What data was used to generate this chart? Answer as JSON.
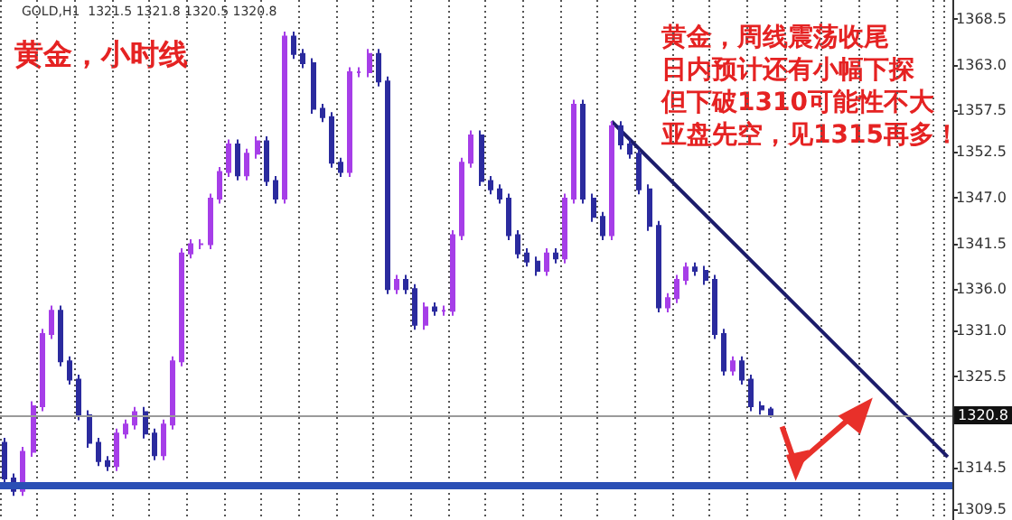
{
  "chart_data": {
    "type": "candlestick",
    "title": "黄金，小时线",
    "subtitle": "GOLD,H1  1321.5 1321.8 1320.5 1320.8",
    "annotations": [
      "黄金，周线震荡收尾",
      "日内预计还有小幅下探",
      "但下破1310可能性不大",
      "亚盘先空，见1315再多！"
    ],
    "categories": [
      null,
      null,
      null,
      null,
      null,
      null,
      null,
      null,
      null,
      null,
      null,
      null,
      null,
      null,
      null,
      null,
      null,
      null,
      null,
      null,
      null,
      null,
      null,
      null,
      null,
      null,
      null,
      null,
      null,
      null,
      null,
      null,
      null,
      null,
      null,
      null,
      null,
      null,
      null,
      null,
      null,
      null,
      null,
      null,
      null,
      null,
      null,
      null,
      null,
      null,
      null,
      null,
      null,
      null,
      null,
      null,
      null,
      null,
      null,
      null,
      null,
      null,
      null,
      null,
      null,
      null,
      null,
      null,
      null,
      null,
      null,
      null,
      null,
      null,
      null,
      null,
      null,
      null,
      null,
      null,
      null,
      null,
      null,
      null,
      null,
      null,
      null,
      null,
      null,
      null,
      null,
      null,
      null,
      null,
      null,
      null,
      null,
      null,
      null,
      null,
      null,
      null
    ],
    "colors": [
      "#2b2b9e",
      "#2b2b9e",
      "#a63ee8",
      "#a63ee8",
      "#a63ee8",
      "#a63ee8",
      "#2b2b9e",
      "#2b2b9e",
      "#2b2b9e",
      "#2b2b9e",
      "#2b2b9e",
      "#2b2b9e",
      "#a63ee8",
      "#a63ee8",
      "#a63ee8",
      "#2b2b9e",
      "#2b2b9e",
      "#a63ee8",
      "#a63ee8",
      "#a63ee8",
      "#a63ee8",
      "#a63ee8",
      "#a63ee8",
      "#a63ee8",
      "#a63ee8",
      "#2b2b9e",
      "#a63ee8",
      "#a63ee8",
      "#2b2b9e",
      "#2b2b9e",
      "#a63ee8",
      "#2b2b9e",
      "#2b2b9e",
      "#2b2b9e",
      "#2b2b9e",
      "#2b2b9e",
      "#2b2b9e",
      "#a63ee8",
      "#a63ee8",
      "#a63ee8",
      "#2b2b9e",
      "#2b2b9e",
      "#a63ee8",
      "#2b2b9e",
      "#2b2b9e",
      "#a63ee8",
      "#2b2b9e",
      "#a63ee8",
      "#a63ee8",
      "#a63ee8",
      "#a63ee8",
      "#2b2b9e",
      "#2b2b9e",
      "#2b2b9e",
      "#2b2b9e",
      "#2b2b9e",
      "#2b2b9e",
      "#2b2b9e",
      "#a63ee8",
      "#2b2b9e",
      "#a63ee8",
      "#a63ee8",
      "#2b2b9e",
      "#2b2b9e",
      "#2b2b9e",
      "#a63ee8",
      "#2b2b9e",
      "#2b2b9e",
      "#2b2b9e",
      "#2b2b9e",
      "#2b2b9e",
      "#a63ee8",
      "#a63ee8",
      "#a63ee8",
      "#2b2b9e",
      "#2b2b9e",
      "#2b2b9e",
      "#2b2b9e",
      "#a63ee8",
      "#2b2b9e",
      "#2b2b9e",
      "#2b2b9e",
      "#2b2b9e",
      null,
      null,
      null,
      null,
      null,
      null,
      null,
      null,
      null,
      null,
      null,
      null,
      null,
      null,
      null,
      null,
      null,
      null,
      null
    ],
    "ohlc": [
      [
        1317.5,
        1318.1,
        1312.6,
        1313.2
      ],
      [
        1313.2,
        1313.8,
        1311.1,
        1311.7
      ],
      [
        1311.7,
        1317.0,
        1311.1,
        1316.4
      ],
      [
        1316.4,
        1322.5,
        1315.8,
        1321.9
      ],
      [
        1321.9,
        1331.2,
        1321.3,
        1330.6
      ],
      [
        1330.6,
        1334.0,
        1330.0,
        1333.4
      ],
      [
        1333.4,
        1334.0,
        1326.7,
        1327.3
      ],
      [
        1327.3,
        1327.9,
        1324.5,
        1325.1
      ],
      [
        1325.1,
        1325.7,
        1320.2,
        1320.8
      ],
      [
        1320.8,
        1321.4,
        1316.9,
        1317.5
      ],
      [
        1317.5,
        1318.1,
        1314.7,
        1315.3
      ],
      [
        1315.3,
        1315.9,
        1314.1,
        1314.7
      ],
      [
        1314.7,
        1319.2,
        1314.1,
        1318.6
      ],
      [
        1318.6,
        1320.3,
        1318.0,
        1319.7
      ],
      [
        1319.7,
        1321.8,
        1319.1,
        1321.2
      ],
      [
        1321.2,
        1321.8,
        1318.0,
        1318.6
      ],
      [
        1318.6,
        1319.2,
        1315.4,
        1316.0
      ],
      [
        1316.0,
        1320.3,
        1315.4,
        1319.7
      ],
      [
        1319.7,
        1327.9,
        1319.1,
        1327.3
      ],
      [
        1327.3,
        1340.9,
        1326.7,
        1340.3
      ],
      [
        1340.3,
        1342.0,
        1339.7,
        1341.4
      ],
      [
        1341.4,
        1342.0,
        1340.8,
        1341.4
      ],
      [
        1341.4,
        1347.5,
        1340.8,
        1346.9
      ],
      [
        1346.9,
        1350.7,
        1346.3,
        1350.1
      ],
      [
        1350.1,
        1354.0,
        1349.5,
        1353.4
      ],
      [
        1353.4,
        1354.0,
        1349.1,
        1349.7
      ],
      [
        1349.7,
        1352.9,
        1349.1,
        1352.3
      ],
      [
        1352.3,
        1354.4,
        1351.7,
        1353.8
      ],
      [
        1353.8,
        1354.4,
        1348.4,
        1349.0
      ],
      [
        1349.0,
        1349.6,
        1346.3,
        1346.9
      ],
      [
        1346.9,
        1367.0,
        1346.3,
        1366.4
      ],
      [
        1366.4,
        1367.0,
        1363.7,
        1364.3
      ],
      [
        1364.3,
        1364.9,
        1362.6,
        1363.2
      ],
      [
        1363.2,
        1363.8,
        1357.1,
        1357.7
      ],
      [
        1357.7,
        1358.3,
        1356.1,
        1356.7
      ],
      [
        1356.7,
        1357.3,
        1350.6,
        1351.2
      ],
      [
        1351.2,
        1351.8,
        1349.5,
        1350.1
      ],
      [
        1350.1,
        1362.7,
        1349.5,
        1362.1
      ],
      [
        1362.1,
        1362.7,
        1361.5,
        1362.1
      ],
      [
        1362.1,
        1364.9,
        1361.5,
        1364.3
      ],
      [
        1364.3,
        1364.9,
        1360.4,
        1361.0
      ],
      [
        1361.0,
        1361.6,
        1335.4,
        1336.0
      ],
      [
        1336.0,
        1337.7,
        1335.4,
        1337.1
      ],
      [
        1337.1,
        1337.7,
        1335.4,
        1336.0
      ],
      [
        1336.0,
        1336.6,
        1331.1,
        1331.7
      ],
      [
        1331.7,
        1334.4,
        1331.1,
        1333.8
      ],
      [
        1333.8,
        1334.4,
        1332.8,
        1333.4
      ],
      [
        1333.4,
        1334.0,
        1332.8,
        1333.4
      ],
      [
        1333.4,
        1343.1,
        1332.8,
        1342.5
      ],
      [
        1342.5,
        1351.8,
        1341.9,
        1351.2
      ],
      [
        1351.2,
        1355.1,
        1350.6,
        1354.5
      ],
      [
        1354.5,
        1355.1,
        1348.4,
        1349.0
      ],
      [
        1349.0,
        1349.6,
        1347.4,
        1348.0
      ],
      [
        1348.0,
        1348.6,
        1346.3,
        1346.9
      ],
      [
        1346.9,
        1347.5,
        1341.9,
        1342.5
      ],
      [
        1342.5,
        1343.1,
        1339.7,
        1340.3
      ],
      [
        1340.3,
        1340.9,
        1338.7,
        1339.3
      ],
      [
        1339.3,
        1339.9,
        1337.6,
        1338.2
      ],
      [
        1338.2,
        1340.9,
        1337.6,
        1340.3
      ],
      [
        1340.3,
        1340.9,
        1339.1,
        1339.7
      ],
      [
        1339.7,
        1347.5,
        1339.1,
        1346.9
      ],
      [
        1346.9,
        1358.8,
        1346.3,
        1358.2
      ],
      [
        1358.2,
        1358.8,
        1346.3,
        1346.9
      ],
      [
        1346.9,
        1347.5,
        1344.1,
        1344.7
      ],
      [
        1344.7,
        1345.3,
        1341.9,
        1342.5
      ],
      [
        1342.5,
        1356.2,
        1341.9,
        1355.6
      ],
      [
        1355.6,
        1356.2,
        1352.8,
        1353.4
      ],
      [
        1353.4,
        1354.0,
        1351.7,
        1352.3
      ],
      [
        1352.3,
        1352.9,
        1347.4,
        1348.0
      ],
      [
        1348.0,
        1348.6,
        1343.0,
        1343.6
      ],
      [
        1343.6,
        1344.2,
        1333.2,
        1333.8
      ],
      [
        1333.8,
        1335.5,
        1333.2,
        1334.9
      ],
      [
        1334.9,
        1337.7,
        1334.3,
        1337.1
      ],
      [
        1337.1,
        1339.2,
        1336.5,
        1338.6
      ],
      [
        1338.6,
        1339.2,
        1337.6,
        1338.2
      ],
      [
        1338.2,
        1338.8,
        1336.5,
        1337.1
      ],
      [
        1337.1,
        1337.7,
        1330.0,
        1330.6
      ],
      [
        1330.6,
        1331.2,
        1325.6,
        1326.2
      ],
      [
        1326.2,
        1327.9,
        1325.6,
        1327.3
      ],
      [
        1327.3,
        1327.9,
        1324.5,
        1325.1
      ],
      [
        1325.1,
        1325.7,
        1321.3,
        1321.9
      ],
      [
        1321.9,
        1322.5,
        1320.9,
        1321.5
      ],
      [
        1321.5,
        1321.8,
        1320.5,
        1320.8
      ],
      null,
      null,
      null,
      null,
      null,
      null,
      null,
      null,
      null,
      null,
      null,
      null,
      null,
      null,
      null,
      null,
      null,
      null,
      null
    ],
    "series": [
      {
        "type": "line",
        "color": "#1c1c6b",
        "values": [
          null,
          null,
          null,
          null,
          null,
          null,
          null,
          null,
          null,
          null,
          null,
          null,
          null,
          null,
          null,
          null,
          null,
          null,
          null,
          null,
          null,
          null,
          null,
          null,
          null,
          null,
          null,
          null,
          null,
          null,
          null,
          null,
          null,
          null,
          null,
          null,
          null,
          null,
          null,
          null,
          null,
          null,
          null,
          null,
          null,
          null,
          null,
          null,
          null,
          null,
          null,
          null,
          null,
          null,
          null,
          null,
          null,
          null,
          null,
          null,
          null,
          null,
          null,
          null,
          null,
          1356.2,
          null,
          null,
          null,
          null,
          null,
          null,
          null,
          null,
          null,
          null,
          null,
          null,
          null,
          null,
          null,
          null,
          null,
          null,
          null,
          null,
          null,
          null,
          null,
          null,
          null,
          null,
          null,
          null,
          null,
          null,
          null,
          null,
          null,
          null,
          null,
          1315.8
        ]
      }
    ],
    "ylim": [
      1308.2,
      1370.8
    ],
    "yticks": [
      {
        "value": 1368.5,
        "label": "1368.5"
      },
      {
        "value": 1363,
        "label": "1363.0"
      },
      {
        "value": 1357.5,
        "label": "1357.5"
      },
      {
        "value": 1352.5,
        "label": "1352.5"
      },
      {
        "value": 1347,
        "label": "1347.0"
      },
      {
        "value": 1341.5,
        "label": "1341.5"
      },
      {
        "value": 1336,
        "label": "1336.0"
      },
      {
        "value": 1331,
        "label": "1331.0"
      },
      {
        "value": 1325.5,
        "label": "1325.5"
      },
      {
        "value": 1314.5,
        "label": "1314.5"
      },
      {
        "value": 1309.5,
        "label": "1309.5"
      }
    ],
    "ref_lines": [
      {
        "axis": "y",
        "value": 1320.8,
        "label": "1320.8",
        "color": "#9a9a9a"
      },
      {
        "axis": "y",
        "value": 1312.3,
        "color": "#2b4fb5"
      }
    ],
    "grid": "x",
    "tick_labels": "y"
  }
}
